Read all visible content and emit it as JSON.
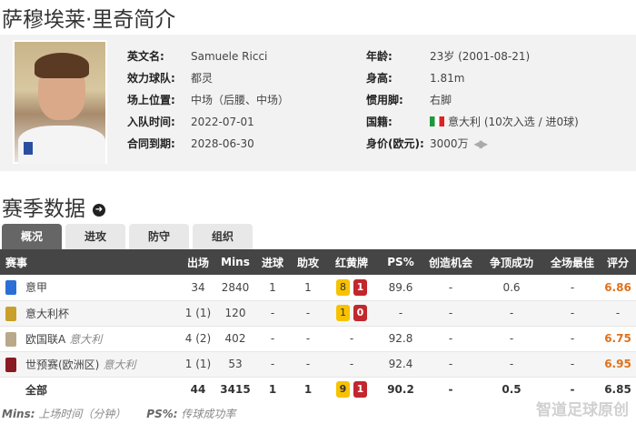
{
  "title": "萨穆埃莱·里奇简介",
  "profile": {
    "left": [
      {
        "label": "英文名:",
        "value": "Samuele Ricci"
      },
      {
        "label": "效力球队:",
        "value": "都灵"
      },
      {
        "label": "场上位置:",
        "value": "中场（后腰、中场）"
      },
      {
        "label": "入队时间:",
        "value": "2022-07-01"
      },
      {
        "label": "合同到期:",
        "value": "2028-06-30"
      }
    ],
    "right": [
      {
        "label": "年龄:",
        "value": "23岁 (2001-08-21)"
      },
      {
        "label": "身高:",
        "value": "1.81m"
      },
      {
        "label": "惯用脚:",
        "value": "右脚"
      },
      {
        "label": "国籍:",
        "value": "意大利 (10次入选 / 进0球)",
        "icon": "italy-flag-icon"
      },
      {
        "label": "身价(欧元):",
        "value": "3000万",
        "icon": "left-right-arrows-icon"
      }
    ]
  },
  "section_title": "赛季数据",
  "tabs": [
    "概况",
    "进攻",
    "防守",
    "组织"
  ],
  "table": {
    "headers": [
      "赛事",
      "出场",
      "Mins",
      "进球",
      "助攻",
      "红黄牌",
      "PS%",
      "创造机会",
      "争顶成功",
      "全场最佳",
      "评分"
    ],
    "rows": [
      {
        "comp": "意甲",
        "team": "",
        "apps": "34",
        "mins": "2840",
        "goals": "1",
        "assists": "1",
        "yellow": "8",
        "red": "1",
        "ps": "89.6",
        "chances": "-",
        "aerials": "0.6",
        "motm": "-",
        "rating": "6.86",
        "logo": "#2a6fd6"
      },
      {
        "comp": "意大利杯",
        "team": "",
        "apps": "1 (1)",
        "mins": "120",
        "goals": "-",
        "assists": "-",
        "yellow": "1",
        "red": "0",
        "ps": "-",
        "chances": "-",
        "aerials": "-",
        "motm": "-",
        "rating": "-",
        "logo": "#c9a12a"
      },
      {
        "comp": "欧国联A",
        "team": "意大利",
        "apps": "4 (2)",
        "mins": "402",
        "goals": "-",
        "assists": "-",
        "yellow": "",
        "red": "",
        "cards_dash": "-",
        "ps": "92.8",
        "chances": "-",
        "aerials": "-",
        "motm": "-",
        "rating": "6.75",
        "logo": "#b9a98a"
      },
      {
        "comp": "世预赛(欧洲区)",
        "team": "意大利",
        "apps": "1 (1)",
        "mins": "53",
        "goals": "-",
        "assists": "-",
        "yellow": "",
        "red": "",
        "cards_dash": "-",
        "ps": "92.4",
        "chances": "-",
        "aerials": "-",
        "motm": "-",
        "rating": "6.95",
        "logo": "#8a1a22"
      }
    ],
    "total": {
      "comp": "全部",
      "apps": "44",
      "mins": "3415",
      "goals": "1",
      "assists": "1",
      "yellow": "9",
      "red": "1",
      "ps": "90.2",
      "chances": "-",
      "aerials": "0.5",
      "motm": "-",
      "rating": "6.85"
    }
  },
  "notes": {
    "mins_key": "Mins:",
    "mins_text": "上场时间（分钟）",
    "ps_key": "PS%:",
    "ps_text": "传球成功率"
  },
  "watermark": "智道足球原创",
  "colors": {
    "rating": "#e0711b",
    "yellow_card": "#f7c200",
    "red_card": "#c1272d",
    "header": "#454545"
  }
}
